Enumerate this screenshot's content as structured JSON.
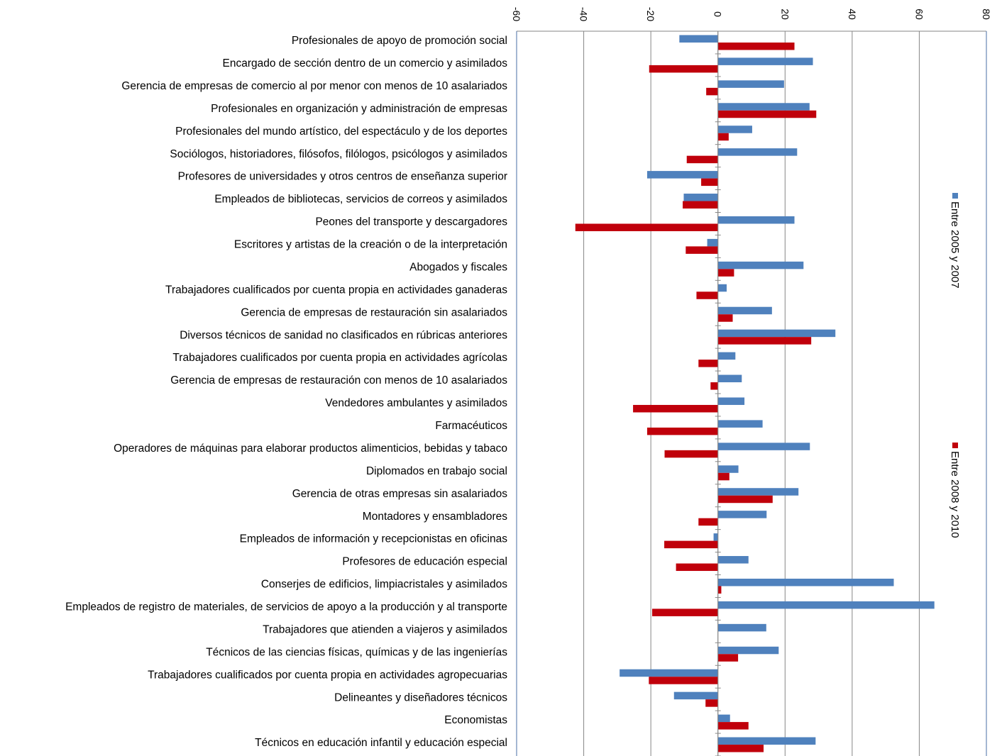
{
  "chart_data": {
    "type": "bar",
    "orientation": "horizontal",
    "categories": [
      "Profesionales de apoyo de promoción social",
      "Encargado de sección dentro de un comercio y asimilados",
      "Gerencia de empresas de comercio al por menor con menos de 10 asalariados",
      "Profesionales en organización y administración de empresas",
      "Profesionales del mundo artístico, del espectáculo y de los deportes",
      "Sociólogos, historiadores, filósofos, filólogos, psicólogos y asimilados",
      "Profesores de universidades y otros centros de enseñanza superior",
      "Empleados de bibliotecas, servicios de correos y asimilados",
      "Peones del transporte y descargadores",
      "Escritores y artistas de la creación o de la interpretación",
      "Abogados y fiscales",
      "Trabajadores cualificados por cuenta propia en actividades ganaderas",
      "Gerencia de empresas de restauración sin asalariados",
      "Diversos técnicos de sanidad no clasificados en rúbricas anteriores",
      "Trabajadores cualificados por cuenta propia en actividades agrícolas",
      "Gerencia de empresas de restauración con menos de 10 asalariados",
      "Vendedores ambulantes y asimilados",
      "Farmacéuticos",
      "Operadores de máquinas para elaborar productos alimenticios, bebidas y tabaco",
      "Diplomados en trabajo social",
      "Gerencia de otras empresas sin asalariados",
      "Montadores y ensambladores",
      "Empleados de información y recepcionistas en oficinas",
      "Profesores de educación especial",
      "Conserjes de edificios, limpiacristales y asimilados",
      "Empleados de registro de materiales, de servicios de apoyo a la producción y al transporte",
      "Trabajadores que atienden a viajeros y asimilados",
      "Técnicos de las ciencias físicas, químicas y de las ingenierías",
      "Trabajadores cualificados por cuenta propia en actividades agropecuarias",
      "Delineantes y diseñadores técnicos",
      "Economistas",
      "Técnicos en educación infantil y educación especial"
    ],
    "series": [
      {
        "name": "Entre 2005 y 2007",
        "color": "#4f81bd",
        "values": [
          -11.5,
          28.3,
          19.7,
          27.3,
          10.2,
          23.6,
          -21.1,
          -10.2,
          22.8,
          -3.2,
          25.5,
          2.6,
          16.1,
          35.0,
          5.2,
          7.1,
          7.9,
          13.3,
          27.4,
          6.1,
          24.0,
          14.5,
          -1.3,
          9.1,
          52.4,
          64.5,
          14.4,
          18.1,
          -29.3,
          -13.1,
          3.6,
          29.1
        ],
        "label_color": "#4f81bd"
      },
      {
        "name": "Entre 2008 y 2010",
        "color": "#c0000b",
        "values": [
          22.8,
          -20.5,
          -3.5,
          29.3,
          3.2,
          -9.3,
          -5.0,
          -10.5,
          -42.5,
          -9.6,
          4.8,
          -6.4,
          4.4,
          27.8,
          -5.8,
          -2.2,
          -25.3,
          -21.1,
          -15.9,
          3.4,
          16.3,
          -5.8,
          -16.0,
          -12.5,
          1.0,
          -19.6,
          0.0,
          6.0,
          -20.6,
          -3.7,
          9.1,
          13.6
        ],
        "label_color": "#c0000b"
      }
    ],
    "xlim": [
      -60,
      80
    ],
    "ticks": [
      -60,
      -40,
      -20,
      0,
      20,
      40,
      60,
      80
    ],
    "tick_labels": [
      "-60",
      "-40",
      "-20",
      "0",
      "20",
      "40",
      "60",
      "80"
    ],
    "grid": "vertical",
    "legend": "right, rotated",
    "title": "",
    "xlabel": "",
    "ylabel": ""
  }
}
